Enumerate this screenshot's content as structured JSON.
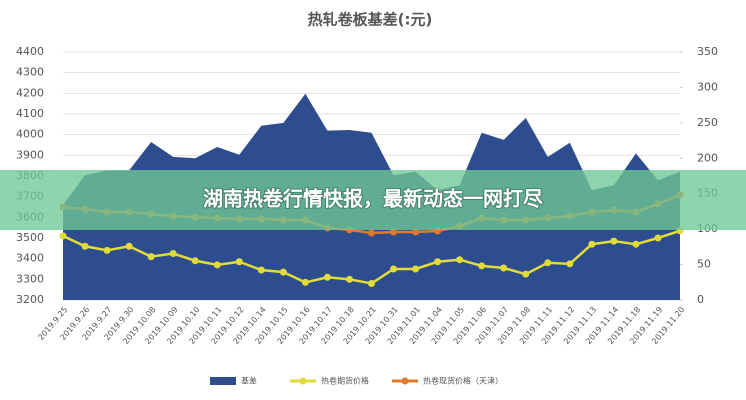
{
  "chart_data": {
    "type": "line",
    "title": "热轧卷板基差(:元)",
    "categories": [
      "2019.9.25",
      "2019.9.26",
      "2019.9.27",
      "2019.9.30",
      "2019.10.08",
      "2019.10.09",
      "2019.10.10",
      "2019.10.11",
      "2019.10.12",
      "2019.10.14",
      "2019.10.15",
      "2019.10.16",
      "2019.10.17",
      "2019.10.18",
      "2019.10.21",
      "2019.10.31",
      "2019.11.01",
      "2019.11.04",
      "2019.11.05",
      "2019.11.06",
      "2019.11.07",
      "2019.11.08",
      "2019.11.11",
      "2019.11.12",
      "2019.11.13",
      "2019.11.14",
      "2019.11.18",
      "2019.11.19",
      "2019.11.20"
    ],
    "series": [
      {
        "name": "基差",
        "color": "#2e4d8f",
        "axis": "y2",
        "kind": "area",
        "values": [
          134,
          176,
          183,
          183,
          223,
          202,
          200,
          216,
          205,
          246,
          250,
          291,
          239,
          240,
          236,
          176,
          181,
          155,
          162,
          236,
          226,
          257,
          202,
          222,
          155,
          162,
          207,
          169,
          181
        ]
      },
      {
        "name": "热卷期货价格",
        "color": "#e2dc3a",
        "values": [
          3510,
          3460,
          3440,
          3460,
          3410,
          3425,
          3390,
          3370,
          3385,
          3345,
          3335,
          3285,
          3310,
          3300,
          3280,
          3350,
          3350,
          3385,
          3395,
          3365,
          3355,
          3325,
          3380,
          3375,
          3470,
          3485,
          3470,
          3500,
          3535
        ]
      },
      {
        "name": "热卷现货价格（天津）",
        "color": "#e07a2a",
        "values": [
          3650,
          3640,
          3626,
          3626,
          3616,
          3606,
          3601,
          3597,
          3592,
          3592,
          3587,
          3587,
          3548,
          3539,
          3524,
          3529,
          3529,
          3534,
          3558,
          3597,
          3587,
          3587,
          3597,
          3606,
          3626,
          3635,
          3626,
          3665,
          3708
        ]
      }
    ],
    "ylim": [
      3200,
      4400
    ],
    "yticks": [
      3200,
      3300,
      3400,
      3500,
      3600,
      3700,
      3800,
      3900,
      4000,
      4100,
      4200,
      4300,
      4400
    ],
    "y2lim": [
      0,
      350
    ],
    "y2ticks": [
      0,
      50,
      100,
      150,
      200,
      250,
      300,
      350
    ],
    "grid": true,
    "legend": "bottom"
  },
  "banner": "湖南热卷行情快报，最新动态一网打尽"
}
